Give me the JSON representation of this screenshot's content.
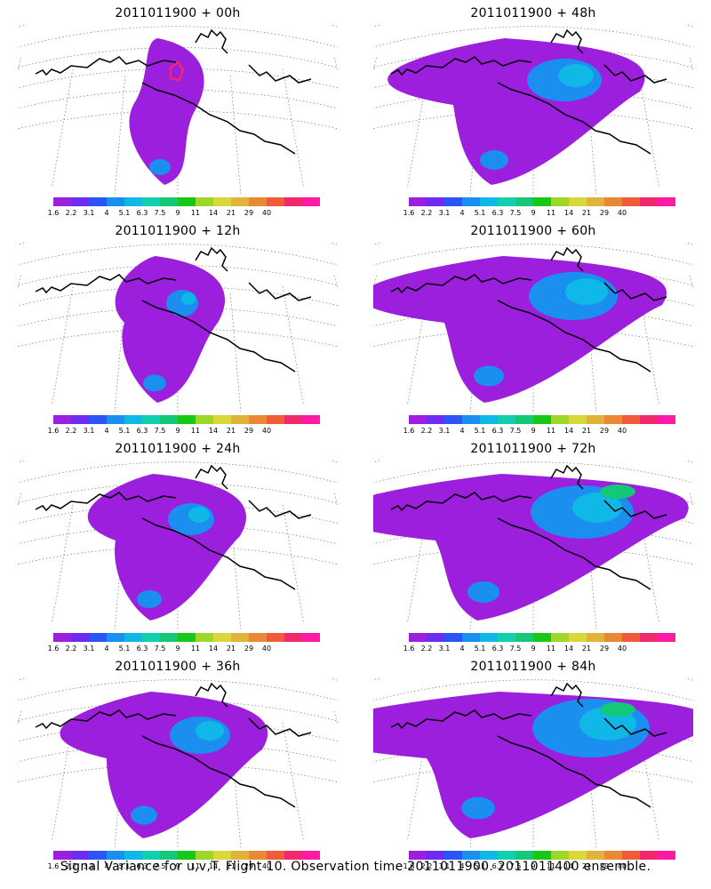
{
  "panels": [
    {
      "title": "2011011900 + 00h",
      "stage": 0
    },
    {
      "title": "2011011900 + 48h",
      "stage": 4
    },
    {
      "title": "2011011900 + 12h",
      "stage": 1
    },
    {
      "title": "2011011900 + 60h",
      "stage": 5
    },
    {
      "title": "2011011900 + 24h",
      "stage": 2
    },
    {
      "title": "2011011900 + 72h",
      "stage": 6
    },
    {
      "title": "2011011900 + 36h",
      "stage": 3
    },
    {
      "title": "2011011900 + 84h",
      "stage": 7
    }
  ],
  "colorbar": {
    "ticks": [
      "1.6",
      "2.2",
      "3.1",
      "4",
      "5.1",
      "6.3",
      "7.5",
      "9",
      "11",
      "14",
      "21",
      "29",
      "40"
    ],
    "colors": [
      "#9b1fdc",
      "#6f2cf0",
      "#2d55f5",
      "#1a8ff0",
      "#10b8e8",
      "#12cfb2",
      "#14c878",
      "#18c818",
      "#9ed62a",
      "#d8d83a",
      "#e0b43a",
      "#e88a34",
      "#f05c3a",
      "#f0286e",
      "#ff1aa4"
    ]
  },
  "caption": "Signal Variance for u,v,T. Flight 10. Observation time 2011011900. 2011011400 ensemble."
}
